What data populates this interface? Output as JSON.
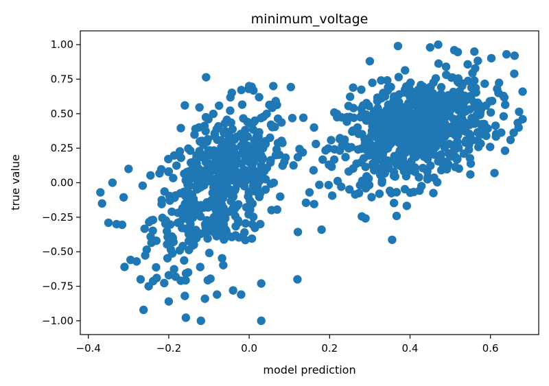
{
  "chart_data": {
    "type": "scatter",
    "title": "minimum_voltage",
    "xlabel": "model prediction",
    "ylabel": "true value",
    "xlim": [
      -0.42,
      0.72
    ],
    "ylim": [
      -1.1,
      1.1
    ],
    "xticks": [
      -0.4,
      -0.2,
      0.0,
      0.2,
      0.4,
      0.6
    ],
    "xtick_labels": [
      "−0.4",
      "−0.2",
      "0.0",
      "0.2",
      "0.4",
      "0.6"
    ],
    "yticks": [
      -1.0,
      -0.75,
      -0.5,
      -0.25,
      0.0,
      0.25,
      0.5,
      0.75,
      1.0
    ],
    "ytick_labels": [
      "−1.00",
      "−0.75",
      "−0.50",
      "−0.25",
      "0.00",
      "0.25",
      "0.50",
      "0.75",
      "1.00"
    ],
    "grid": false,
    "marker_color": "#1f77b4",
    "series": [
      {
        "clusters": [
          {
            "cx": -0.07,
            "cy": 0.0,
            "sx": 0.085,
            "sy": 0.28,
            "rho": 0.45,
            "n": 520
          },
          {
            "cx": 0.41,
            "cy": 0.38,
            "sx": 0.095,
            "sy": 0.2,
            "rho": 0.35,
            "n": 720
          }
        ],
        "points": [
          {
            "x": -0.37,
            "y": -0.07
          },
          {
            "x": -0.35,
            "y": -0.29
          },
          {
            "x": -0.33,
            "y": -0.3
          },
          {
            "x": -0.34,
            "y": 0.0
          },
          {
            "x": -0.31,
            "y": -0.61
          },
          {
            "x": -0.28,
            "y": -0.57
          },
          {
            "x": -0.27,
            "y": -0.7
          },
          {
            "x": -0.25,
            "y": -0.75
          },
          {
            "x": -0.23,
            "y": -0.69
          },
          {
            "x": -0.2,
            "y": -0.86
          },
          {
            "x": -0.2,
            "y": -0.67
          },
          {
            "x": -0.17,
            "y": -0.71
          },
          {
            "x": -0.16,
            "y": -0.82
          },
          {
            "x": -0.12,
            "y": -1.0
          },
          {
            "x": 0.03,
            "y": -1.0
          },
          {
            "x": -0.11,
            "y": -0.84
          },
          {
            "x": -0.08,
            "y": -0.81
          },
          {
            "x": -0.04,
            "y": -0.78
          },
          {
            "x": -0.02,
            "y": -0.81
          },
          {
            "x": 0.03,
            "y": -0.73
          },
          {
            "x": 0.12,
            "y": -0.7
          },
          {
            "x": 0.18,
            "y": -0.34
          },
          {
            "x": 0.15,
            "y": -0.07
          },
          {
            "x": -0.16,
            "y": 0.56
          },
          {
            "x": 0.0,
            "y": 0.7
          },
          {
            "x": 0.06,
            "y": 0.7
          },
          {
            "x": -0.3,
            "y": 0.1
          },
          {
            "x": 0.3,
            "y": 0.88
          },
          {
            "x": 0.37,
            "y": 0.99
          },
          {
            "x": 0.45,
            "y": 0.98
          },
          {
            "x": 0.47,
            "y": 1.0
          },
          {
            "x": 0.51,
            "y": 0.96
          },
          {
            "x": 0.56,
            "y": 0.95
          },
          {
            "x": 0.64,
            "y": 0.93
          },
          {
            "x": 0.66,
            "y": 0.92
          },
          {
            "x": 0.68,
            "y": 0.66
          },
          {
            "x": 0.68,
            "y": 0.46
          },
          {
            "x": 0.67,
            "y": 0.4
          },
          {
            "x": 0.65,
            "y": 0.31
          },
          {
            "x": 0.62,
            "y": 0.65
          },
          {
            "x": 0.61,
            "y": 0.07
          },
          {
            "x": 0.55,
            "y": 0.06
          },
          {
            "x": 0.36,
            "y": 0.05
          },
          {
            "x": 0.33,
            "y": 0.0
          },
          {
            "x": 0.16,
            "y": 0.09
          },
          {
            "x": 0.29,
            "y": -0.04
          }
        ]
      }
    ]
  }
}
